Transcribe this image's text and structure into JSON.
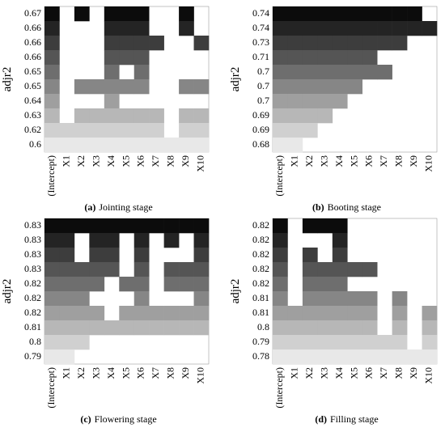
{
  "chart_data": [
    {
      "type": "heatmap",
      "label": "(a)",
      "title": "Jointing stage",
      "ylabel": "adjr2",
      "rows": [
        0.67,
        0.66,
        0.66,
        0.66,
        0.65,
        0.65,
        0.64,
        0.63,
        0.62,
        0.6
      ],
      "columns": [
        "(Intercept)",
        "X1",
        "X2",
        "X3",
        "X4",
        "X5",
        "X6",
        "X7",
        "X8",
        "X9",
        "X10"
      ],
      "included": [
        [
          1,
          0,
          1,
          0,
          1,
          1,
          1,
          0,
          0,
          1,
          0
        ],
        [
          1,
          0,
          0,
          0,
          1,
          1,
          1,
          0,
          0,
          1,
          0
        ],
        [
          1,
          0,
          0,
          0,
          1,
          1,
          1,
          1,
          0,
          0,
          1
        ],
        [
          1,
          0,
          0,
          0,
          1,
          1,
          1,
          0,
          0,
          0,
          0
        ],
        [
          1,
          0,
          0,
          0,
          1,
          0,
          1,
          0,
          0,
          0,
          0
        ],
        [
          1,
          0,
          1,
          1,
          1,
          1,
          1,
          0,
          0,
          1,
          1
        ],
        [
          1,
          0,
          0,
          0,
          1,
          0,
          0,
          0,
          0,
          0,
          0
        ],
        [
          1,
          0,
          1,
          1,
          1,
          1,
          1,
          1,
          0,
          1,
          1
        ],
        [
          1,
          1,
          1,
          1,
          1,
          1,
          1,
          1,
          0,
          1,
          1
        ],
        [
          1,
          1,
          1,
          1,
          1,
          1,
          1,
          1,
          1,
          1,
          1
        ]
      ]
    },
    {
      "type": "heatmap",
      "label": "(b)",
      "title": "Booting stage",
      "ylabel": "adjr2",
      "rows": [
        0.74,
        0.74,
        0.73,
        0.71,
        0.7,
        0.7,
        0.7,
        0.69,
        0.69,
        0.68
      ],
      "columns": [
        "(Intercept)",
        "X1",
        "X2",
        "X3",
        "X4",
        "X5",
        "X6",
        "X7",
        "X8",
        "X9",
        "X10"
      ],
      "included": [
        [
          1,
          1,
          1,
          1,
          1,
          1,
          1,
          1,
          1,
          1,
          0
        ],
        [
          1,
          1,
          1,
          1,
          1,
          1,
          1,
          1,
          1,
          1,
          1
        ],
        [
          1,
          1,
          1,
          1,
          1,
          1,
          1,
          1,
          1,
          0,
          0
        ],
        [
          1,
          1,
          1,
          1,
          1,
          1,
          1,
          0,
          0,
          0,
          0
        ],
        [
          1,
          1,
          1,
          1,
          1,
          1,
          1,
          1,
          0,
          0,
          0
        ],
        [
          1,
          1,
          1,
          1,
          1,
          1,
          0,
          0,
          0,
          0,
          0
        ],
        [
          1,
          1,
          1,
          1,
          1,
          0,
          0,
          0,
          0,
          0,
          0
        ],
        [
          1,
          1,
          1,
          1,
          0,
          0,
          0,
          0,
          0,
          0,
          0
        ],
        [
          1,
          1,
          1,
          0,
          0,
          0,
          0,
          0,
          0,
          0,
          0
        ],
        [
          1,
          1,
          0,
          0,
          0,
          0,
          0,
          0,
          0,
          0,
          0
        ]
      ]
    },
    {
      "type": "heatmap",
      "label": "(c)",
      "title": "Flowering stage",
      "ylabel": "adjr2",
      "rows": [
        0.83,
        0.83,
        0.83,
        0.83,
        0.82,
        0.82,
        0.82,
        0.81,
        0.8,
        0.79
      ],
      "columns": [
        "(Intercept)",
        "X1",
        "X2",
        "X3",
        "X4",
        "X5",
        "X6",
        "X7",
        "X8",
        "X9",
        "X10"
      ],
      "included": [
        [
          1,
          1,
          1,
          1,
          1,
          1,
          1,
          1,
          1,
          1,
          1
        ],
        [
          1,
          1,
          0,
          1,
          1,
          0,
          1,
          0,
          1,
          0,
          1
        ],
        [
          1,
          1,
          0,
          1,
          1,
          0,
          1,
          0,
          0,
          0,
          1
        ],
        [
          1,
          1,
          1,
          1,
          1,
          0,
          1,
          0,
          1,
          1,
          1
        ],
        [
          1,
          1,
          1,
          1,
          0,
          1,
          1,
          0,
          1,
          1,
          1
        ],
        [
          1,
          1,
          1,
          0,
          0,
          0,
          1,
          0,
          0,
          0,
          1
        ],
        [
          1,
          1,
          1,
          1,
          0,
          1,
          1,
          1,
          1,
          1,
          1
        ],
        [
          1,
          1,
          1,
          1,
          1,
          1,
          1,
          1,
          1,
          1,
          1
        ],
        [
          1,
          1,
          1,
          0,
          0,
          0,
          0,
          0,
          0,
          0,
          0
        ],
        [
          1,
          1,
          0,
          0,
          0,
          0,
          0,
          0,
          0,
          0,
          0
        ]
      ]
    },
    {
      "type": "heatmap",
      "label": "(d)",
      "title": "Filling stage",
      "ylabel": "adjr2",
      "rows": [
        0.82,
        0.82,
        0.82,
        0.82,
        0.82,
        0.81,
        0.81,
        0.8,
        0.79,
        0.78
      ],
      "columns": [
        "(Intercept)",
        "X1",
        "X2",
        "X3",
        "X4",
        "X5",
        "X6",
        "X7",
        "X8",
        "X9",
        "X10"
      ],
      "included": [
        [
          1,
          0,
          1,
          1,
          1,
          0,
          0,
          0,
          0,
          0,
          0
        ],
        [
          1,
          0,
          0,
          0,
          1,
          0,
          0,
          0,
          0,
          0,
          0
        ],
        [
          1,
          0,
          1,
          0,
          1,
          0,
          0,
          0,
          0,
          0,
          0
        ],
        [
          1,
          0,
          1,
          1,
          1,
          1,
          1,
          0,
          0,
          0,
          0
        ],
        [
          1,
          0,
          1,
          1,
          1,
          0,
          0,
          0,
          0,
          0,
          0
        ],
        [
          1,
          0,
          1,
          1,
          1,
          1,
          1,
          0,
          1,
          0,
          0
        ],
        [
          1,
          1,
          1,
          1,
          1,
          1,
          1,
          0,
          1,
          0,
          1
        ],
        [
          1,
          1,
          1,
          1,
          1,
          1,
          1,
          0,
          1,
          0,
          1
        ],
        [
          1,
          1,
          1,
          1,
          1,
          1,
          1,
          1,
          1,
          0,
          1
        ],
        [
          1,
          1,
          1,
          1,
          1,
          1,
          1,
          1,
          1,
          1,
          1
        ]
      ]
    }
  ]
}
